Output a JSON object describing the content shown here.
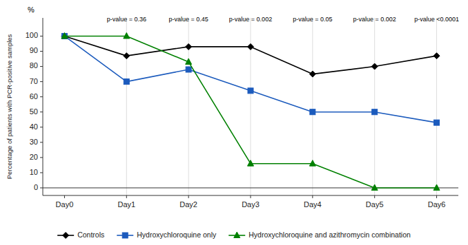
{
  "chart_data": {
    "type": "line",
    "categories": [
      "Day0",
      "Day1",
      "Day2",
      "Day3",
      "Day4",
      "Day5",
      "Day6"
    ],
    "series": [
      {
        "name": "Controls",
        "color": "#000000",
        "marker": "diamond",
        "values": [
          100,
          87,
          93,
          93,
          75,
          80,
          87
        ]
      },
      {
        "name": "Hydroxychloroquine only",
        "color": "#1c5bbd",
        "marker": "square",
        "values": [
          100,
          70,
          78,
          64,
          50,
          50,
          43
        ]
      },
      {
        "name": "Hydroxychloroquine and azithromycin combination",
        "color": "#008000",
        "marker": "triangle",
        "values": [
          100,
          100,
          83,
          16,
          16,
          0,
          0
        ]
      }
    ],
    "ylabel": "Percentage of patients with PCR-positive samples",
    "annotations": [
      {
        "text": "%"
      },
      {
        "text": "p-value = 0.36",
        "x": "Day1",
        "y": 109
      },
      {
        "text": "p-value = 0.45",
        "x": "Day2",
        "y": 109
      },
      {
        "text": "p-value = 0.002",
        "x": "Day3",
        "y": 109
      },
      {
        "text": "p-value = 0.05",
        "x": "Day4",
        "y": 109
      },
      {
        "text": "p-value = 0.002",
        "x": "Day5",
        "y": 109
      },
      {
        "text": "p-value <0.0001",
        "x": "Day6",
        "y": 109
      }
    ],
    "ylim": [
      -5,
      112
    ],
    "yticks": [
      0,
      10,
      20,
      30,
      40,
      50,
      60,
      70,
      80,
      90,
      100
    ],
    "grid": "x",
    "legend": "bottom"
  }
}
